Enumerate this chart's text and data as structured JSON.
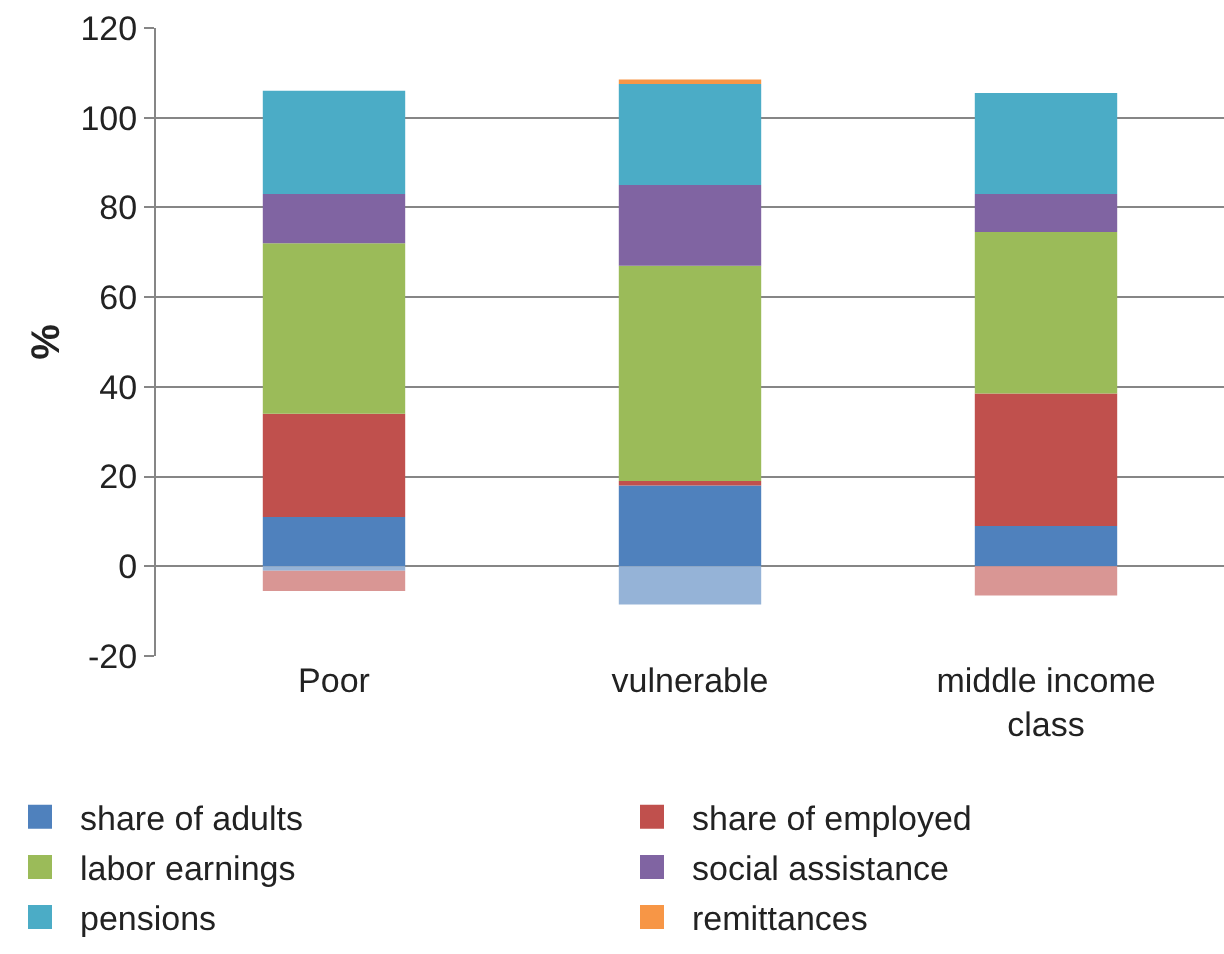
{
  "chart_data": {
    "type": "bar",
    "stacked": true,
    "ylabel": "%",
    "categories": [
      "Poor",
      "vulnerable",
      "middle income class"
    ],
    "series": [
      {
        "name": "share of adults",
        "color": "#4f81bd",
        "values": [
          11,
          18,
          9
        ]
      },
      {
        "name": "share of employed",
        "color": "#c0504d",
        "values": [
          23,
          1,
          29.5
        ]
      },
      {
        "name": "labor earnings",
        "color": "#9bbb59",
        "values": [
          38,
          48,
          36
        ]
      },
      {
        "name": "social assistance",
        "color": "#8064a2",
        "values": [
          11,
          18,
          8.5
        ]
      },
      {
        "name": "pensions",
        "color": "#4bacc6",
        "values": [
          23,
          22.5,
          22.5
        ]
      },
      {
        "name": "remittances",
        "color": "#f79646",
        "values": [
          0,
          1,
          0
        ]
      },
      {
        "color": "#95b3d7",
        "values": [
          -1,
          -8.5,
          0
        ]
      },
      {
        "color": "#d99694",
        "values": [
          -4.5,
          0,
          -6.5
        ]
      }
    ],
    "ylim": [
      -20,
      120
    ],
    "yticks": [
      -20,
      0,
      20,
      40,
      60,
      80,
      100,
      120
    ],
    "grid": "y",
    "legend": "bottom"
  }
}
